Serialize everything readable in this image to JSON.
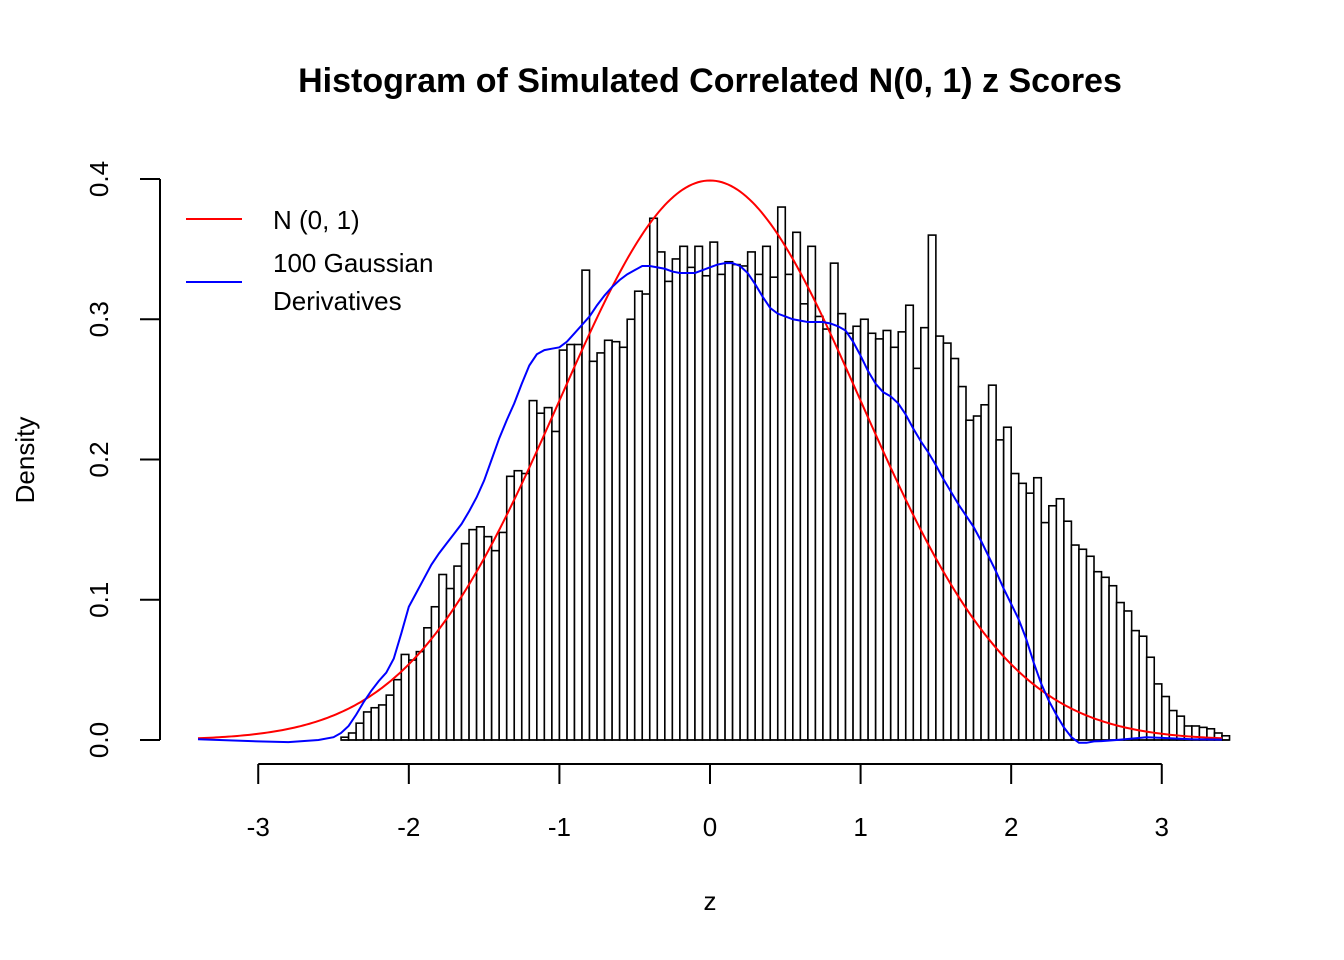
{
  "chart_data": {
    "type": "bar",
    "title": "Histogram of Simulated Correlated N(0, 1) z Scores",
    "xlabel": "z",
    "ylabel": "Density",
    "xlim": [
      -3.4,
      3.4
    ],
    "ylim": [
      0,
      0.4
    ],
    "x_ticks": [
      -3,
      -2,
      -1,
      0,
      1,
      2,
      3
    ],
    "x_tick_labels": [
      "-3",
      "-2",
      "-1",
      "0",
      "1",
      "2",
      "3"
    ],
    "y_ticks": [
      0.0,
      0.1,
      0.2,
      0.3,
      0.4
    ],
    "y_tick_labels": [
      "0.0",
      "0.1",
      "0.2",
      "0.3",
      "0.4"
    ],
    "bin_start": -2.45,
    "bin_width": 0.05,
    "values": [
      0.002,
      0.005,
      0.012,
      0.02,
      0.023,
      0.025,
      0.032,
      0.043,
      0.061,
      0.057,
      0.063,
      0.08,
      0.095,
      0.118,
      0.108,
      0.124,
      0.14,
      0.15,
      0.152,
      0.145,
      0.135,
      0.148,
      0.188,
      0.192,
      0.19,
      0.242,
      0.233,
      0.237,
      0.22,
      0.278,
      0.282,
      0.282,
      0.335,
      0.27,
      0.276,
      0.285,
      0.284,
      0.28,
      0.3,
      0.32,
      0.318,
      0.372,
      0.348,
      0.327,
      0.343,
      0.352,
      0.337,
      0.352,
      0.331,
      0.355,
      0.332,
      0.341,
      0.339,
      0.338,
      0.348,
      0.332,
      0.352,
      0.33,
      0.38,
      0.332,
      0.362,
      0.311,
      0.352,
      0.302,
      0.293,
      0.34,
      0.304,
      0.29,
      0.295,
      0.3,
      0.29,
      0.286,
      0.292,
      0.28,
      0.291,
      0.31,
      0.265,
      0.294,
      0.36,
      0.288,
      0.283,
      0.272,
      0.252,
      0.228,
      0.231,
      0.239,
      0.253,
      0.214,
      0.223,
      0.19,
      0.183,
      0.176,
      0.187,
      0.155,
      0.167,
      0.172,
      0.156,
      0.139,
      0.136,
      0.131,
      0.12,
      0.116,
      0.11,
      0.098,
      0.092,
      0.078,
      0.074,
      0.059,
      0.04,
      0.031,
      0.021,
      0.017,
      0.01,
      0.01,
      0.009,
      0.008,
      0.005,
      0.003
    ],
    "series": [
      {
        "name": "N (0, 1)",
        "type": "line",
        "color": "#ff0000",
        "function": "normal_pdf",
        "mean": 0,
        "sd": 1
      },
      {
        "name": "100 Gaussian Derivatives",
        "type": "line",
        "color": "#0000ff",
        "x": [
          -3.4,
          -3.0,
          -2.8,
          -2.6,
          -2.5,
          -2.45,
          -2.4,
          -2.35,
          -2.3,
          -2.25,
          -2.2,
          -2.15,
          -2.1,
          -2.05,
          -2.0,
          -1.95,
          -1.9,
          -1.85,
          -1.8,
          -1.75,
          -1.7,
          -1.65,
          -1.6,
          -1.55,
          -1.5,
          -1.45,
          -1.4,
          -1.35,
          -1.3,
          -1.25,
          -1.2,
          -1.15,
          -1.1,
          -1.05,
          -1.0,
          -0.95,
          -0.9,
          -0.85,
          -0.8,
          -0.75,
          -0.7,
          -0.65,
          -0.6,
          -0.55,
          -0.5,
          -0.45,
          -0.4,
          -0.35,
          -0.3,
          -0.25,
          -0.2,
          -0.15,
          -0.1,
          -0.05,
          0.0,
          0.05,
          0.1,
          0.15,
          0.2,
          0.25,
          0.3,
          0.35,
          0.4,
          0.45,
          0.5,
          0.55,
          0.6,
          0.65,
          0.7,
          0.75,
          0.8,
          0.85,
          0.9,
          0.95,
          1.0,
          1.05,
          1.1,
          1.15,
          1.2,
          1.25,
          1.3,
          1.35,
          1.4,
          1.45,
          1.5,
          1.55,
          1.6,
          1.65,
          1.7,
          1.75,
          1.8,
          1.85,
          1.9,
          1.95,
          2.0,
          2.05,
          2.1,
          2.15,
          2.2,
          2.25,
          2.3,
          2.35,
          2.4,
          2.45,
          2.5,
          2.55,
          2.6,
          2.7,
          2.8,
          2.9,
          3.0,
          3.2,
          3.4
        ],
        "y": [
          0.0005,
          -0.001,
          -0.0015,
          0.0,
          0.002,
          0.005,
          0.01,
          0.018,
          0.027,
          0.035,
          0.042,
          0.048,
          0.058,
          0.076,
          0.095,
          0.105,
          0.115,
          0.125,
          0.133,
          0.14,
          0.147,
          0.154,
          0.163,
          0.173,
          0.185,
          0.2,
          0.215,
          0.228,
          0.24,
          0.254,
          0.267,
          0.275,
          0.278,
          0.279,
          0.28,
          0.284,
          0.29,
          0.296,
          0.302,
          0.31,
          0.317,
          0.323,
          0.328,
          0.332,
          0.335,
          0.338,
          0.338,
          0.337,
          0.336,
          0.334,
          0.333,
          0.333,
          0.333,
          0.335,
          0.337,
          0.339,
          0.34,
          0.34,
          0.338,
          0.333,
          0.325,
          0.316,
          0.308,
          0.304,
          0.302,
          0.3,
          0.299,
          0.298,
          0.298,
          0.298,
          0.297,
          0.295,
          0.292,
          0.284,
          0.274,
          0.263,
          0.254,
          0.248,
          0.245,
          0.24,
          0.232,
          0.222,
          0.213,
          0.205,
          0.196,
          0.186,
          0.177,
          0.168,
          0.16,
          0.152,
          0.142,
          0.131,
          0.12,
          0.108,
          0.097,
          0.086,
          0.072,
          0.055,
          0.04,
          0.028,
          0.018,
          0.009,
          0.002,
          -0.002,
          -0.002,
          -0.001,
          -0.0008,
          0.0,
          0.001,
          0.002,
          0.0015,
          0.0005,
          0.0003
        ]
      }
    ],
    "legend": {
      "position": "top-left",
      "entries": [
        {
          "label_lines": [
            "N (0, 1)"
          ],
          "color": "#ff0000"
        },
        {
          "label_lines": [
            "100 Gaussian",
            "Derivatives"
          ],
          "color": "#0000ff"
        }
      ]
    },
    "grid": false
  }
}
